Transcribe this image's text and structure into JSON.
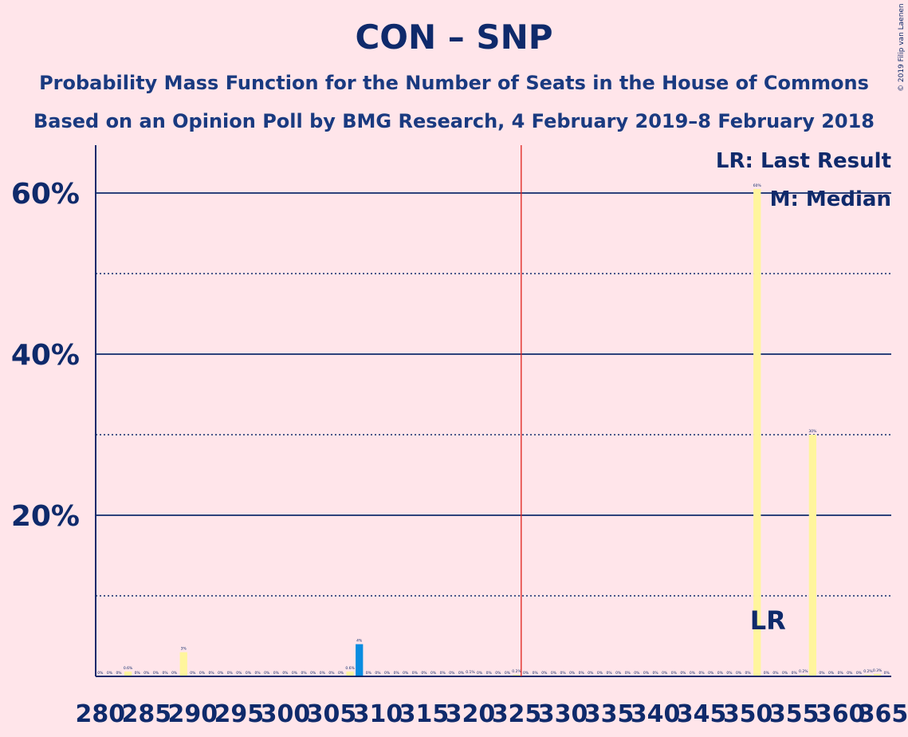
{
  "header": {
    "title": "CON – SNP",
    "subtitle1": "Probability Mass Function for the Number of Seats in the House of Commons",
    "subtitle2": "Based on an Opinion Poll by BMG Research, 4 February 2019–8 February 2018",
    "copyright": "© 2019 Filip van Laenen"
  },
  "legend": {
    "last_result": "LR: Last Result",
    "median": "M: Median"
  },
  "chart_data": {
    "type": "bar",
    "title": "CON – SNP",
    "x_range": [
      280,
      365
    ],
    "ylim": [
      0,
      66
    ],
    "y_ticks": [
      {
        "value": 20,
        "label": "20%"
      },
      {
        "value": 40,
        "label": "40%"
      },
      {
        "value": 60,
        "label": "60%"
      }
    ],
    "y_minor_gridlines": [
      10,
      30,
      50
    ],
    "x_ticks": [
      280,
      285,
      290,
      295,
      300,
      305,
      310,
      315,
      320,
      325,
      330,
      335,
      340,
      345,
      350,
      355,
      360,
      365
    ],
    "majority_line": 326,
    "last_result": {
      "seat": 351,
      "label": "LR"
    },
    "median": 351,
    "colors": {
      "background": "#FFE5EA",
      "axis": "#0F2A6B",
      "bar_yellow": "#FFF59D",
      "bar_blue": "#0A8CE0",
      "majority_line": "#E0201A"
    },
    "bars": [
      {
        "seat": 280,
        "value": 0,
        "label": "0%"
      },
      {
        "seat": 281,
        "value": 0,
        "label": "0%"
      },
      {
        "seat": 282,
        "value": 0,
        "label": "0%"
      },
      {
        "seat": 283,
        "value": 0.6,
        "label": "0.6%"
      },
      {
        "seat": 284,
        "value": 0,
        "label": "0%"
      },
      {
        "seat": 285,
        "value": 0,
        "label": "0%"
      },
      {
        "seat": 286,
        "value": 0,
        "label": "0%"
      },
      {
        "seat": 287,
        "value": 0,
        "label": "0%"
      },
      {
        "seat": 288,
        "value": 0,
        "label": "0%"
      },
      {
        "seat": 289,
        "value": 3,
        "label": "3%"
      },
      {
        "seat": 290,
        "value": 0,
        "label": "0%"
      },
      {
        "seat": 291,
        "value": 0,
        "label": "0%"
      },
      {
        "seat": 292,
        "value": 0,
        "label": "0%"
      },
      {
        "seat": 293,
        "value": 0,
        "label": "0%"
      },
      {
        "seat": 294,
        "value": 0,
        "label": "0%"
      },
      {
        "seat": 295,
        "value": 0,
        "label": "0%"
      },
      {
        "seat": 296,
        "value": 0,
        "label": "0%"
      },
      {
        "seat": 297,
        "value": 0,
        "label": "0%"
      },
      {
        "seat": 298,
        "value": 0,
        "label": "0%"
      },
      {
        "seat": 299,
        "value": 0,
        "label": "0%"
      },
      {
        "seat": 300,
        "value": 0,
        "label": "0%"
      },
      {
        "seat": 301,
        "value": 0,
        "label": "0%"
      },
      {
        "seat": 302,
        "value": 0,
        "label": "0%"
      },
      {
        "seat": 303,
        "value": 0,
        "label": "0%"
      },
      {
        "seat": 304,
        "value": 0,
        "label": "0%"
      },
      {
        "seat": 305,
        "value": 0,
        "label": "0%"
      },
      {
        "seat": 306,
        "value": 0,
        "label": "0%"
      },
      {
        "seat": 307,
        "value": 0.6,
        "label": "0.6%"
      },
      {
        "seat": 308,
        "value": 4,
        "label": "4%"
      },
      {
        "seat": 309,
        "value": 0,
        "label": "0%"
      },
      {
        "seat": 310,
        "value": 0,
        "label": "0%"
      },
      {
        "seat": 311,
        "value": 0,
        "label": "0%"
      },
      {
        "seat": 312,
        "value": 0,
        "label": "0%"
      },
      {
        "seat": 313,
        "value": 0,
        "label": "0%"
      },
      {
        "seat": 314,
        "value": 0,
        "label": "0%"
      },
      {
        "seat": 315,
        "value": 0,
        "label": "0%"
      },
      {
        "seat": 316,
        "value": 0,
        "label": "0%"
      },
      {
        "seat": 317,
        "value": 0,
        "label": "0%"
      },
      {
        "seat": 318,
        "value": 0,
        "label": "0%"
      },
      {
        "seat": 319,
        "value": 0,
        "label": "0%"
      },
      {
        "seat": 320,
        "value": 0.1,
        "label": "0.1%"
      },
      {
        "seat": 321,
        "value": 0,
        "label": "0%"
      },
      {
        "seat": 322,
        "value": 0,
        "label": "0%"
      },
      {
        "seat": 323,
        "value": 0,
        "label": "0%"
      },
      {
        "seat": 324,
        "value": 0,
        "label": "0%"
      },
      {
        "seat": 325,
        "value": 0.2,
        "label": "0.2%"
      },
      {
        "seat": 326,
        "value": 0,
        "label": "0%"
      },
      {
        "seat": 327,
        "value": 0,
        "label": "0%"
      },
      {
        "seat": 328,
        "value": 0,
        "label": "0%"
      },
      {
        "seat": 329,
        "value": 0,
        "label": "0%"
      },
      {
        "seat": 330,
        "value": 0,
        "label": "0%"
      },
      {
        "seat": 331,
        "value": 0,
        "label": "0%"
      },
      {
        "seat": 332,
        "value": 0,
        "label": "0%"
      },
      {
        "seat": 333,
        "value": 0,
        "label": "0%"
      },
      {
        "seat": 334,
        "value": 0,
        "label": "0%"
      },
      {
        "seat": 335,
        "value": 0,
        "label": "0%"
      },
      {
        "seat": 336,
        "value": 0,
        "label": "0%"
      },
      {
        "seat": 337,
        "value": 0,
        "label": "0%"
      },
      {
        "seat": 338,
        "value": 0,
        "label": "0%"
      },
      {
        "seat": 339,
        "value": 0,
        "label": "0%"
      },
      {
        "seat": 340,
        "value": 0,
        "label": "0%"
      },
      {
        "seat": 341,
        "value": 0,
        "label": "0%"
      },
      {
        "seat": 342,
        "value": 0,
        "label": "0%"
      },
      {
        "seat": 343,
        "value": 0,
        "label": "0%"
      },
      {
        "seat": 344,
        "value": 0,
        "label": "0%"
      },
      {
        "seat": 345,
        "value": 0,
        "label": "0%"
      },
      {
        "seat": 346,
        "value": 0,
        "label": "0%"
      },
      {
        "seat": 347,
        "value": 0,
        "label": "0%"
      },
      {
        "seat": 348,
        "value": 0,
        "label": "0%"
      },
      {
        "seat": 349,
        "value": 0,
        "label": "0%"
      },
      {
        "seat": 350,
        "value": 0,
        "label": "0%"
      },
      {
        "seat": 351,
        "value": 60.5,
        "label": "60%"
      },
      {
        "seat": 352,
        "value": 0,
        "label": "0%"
      },
      {
        "seat": 353,
        "value": 0,
        "label": "0%"
      },
      {
        "seat": 354,
        "value": 0,
        "label": "0%"
      },
      {
        "seat": 355,
        "value": 0,
        "label": "0%"
      },
      {
        "seat": 356,
        "value": 0.2,
        "label": "0.2%"
      },
      {
        "seat": 357,
        "value": 30,
        "label": "30%"
      },
      {
        "seat": 358,
        "value": 0,
        "label": "0%"
      },
      {
        "seat": 359,
        "value": 0,
        "label": "0%"
      },
      {
        "seat": 360,
        "value": 0,
        "label": "0%"
      },
      {
        "seat": 361,
        "value": 0,
        "label": "0%"
      },
      {
        "seat": 362,
        "value": 0,
        "label": "0%"
      },
      {
        "seat": 363,
        "value": 0.2,
        "label": "0.2%"
      },
      {
        "seat": 364,
        "value": 0.3,
        "label": "0.3%"
      },
      {
        "seat": 365,
        "value": 0,
        "label": "0%"
      }
    ]
  }
}
